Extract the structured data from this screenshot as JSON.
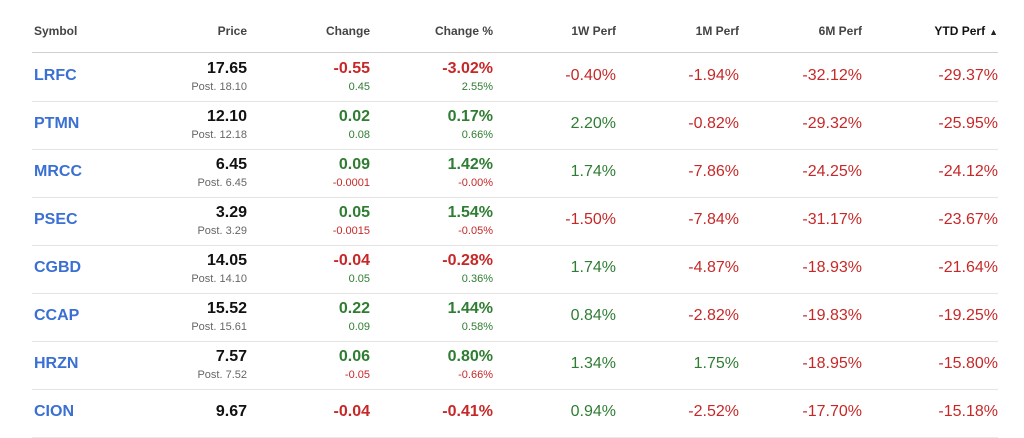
{
  "headers": {
    "symbol": "Symbol",
    "price": "Price",
    "change": "Change",
    "change_pct": "Change %",
    "w1": "1W Perf",
    "m1": "1M Perf",
    "m6": "6M Perf",
    "ytd": "YTD Perf",
    "ytd_sort_icon": "▲"
  },
  "rows": [
    {
      "symbol": "LRFC",
      "price": "17.65",
      "post": "Post. 18.10",
      "change": "-0.55",
      "change_post": "0.45",
      "change_pct": "-3.02%",
      "change_pct_post": "2.55%",
      "w1": "-0.40%",
      "m1": "-1.94%",
      "m6": "-32.12%",
      "ytd": "-29.37%"
    },
    {
      "symbol": "PTMN",
      "price": "12.10",
      "post": "Post. 12.18",
      "change": "0.02",
      "change_post": "0.08",
      "change_pct": "0.17%",
      "change_pct_post": "0.66%",
      "w1": "2.20%",
      "m1": "-0.82%",
      "m6": "-29.32%",
      "ytd": "-25.95%"
    },
    {
      "symbol": "MRCC",
      "price": "6.45",
      "post": "Post. 6.45",
      "change": "0.09",
      "change_post": "-0.0001",
      "change_pct": "1.42%",
      "change_pct_post": "-0.00%",
      "w1": "1.74%",
      "m1": "-7.86%",
      "m6": "-24.25%",
      "ytd": "-24.12%"
    },
    {
      "symbol": "PSEC",
      "price": "3.29",
      "post": "Post. 3.29",
      "change": "0.05",
      "change_post": "-0.0015",
      "change_pct": "1.54%",
      "change_pct_post": "-0.05%",
      "w1": "-1.50%",
      "m1": "-7.84%",
      "m6": "-31.17%",
      "ytd": "-23.67%"
    },
    {
      "symbol": "CGBD",
      "price": "14.05",
      "post": "Post. 14.10",
      "change": "-0.04",
      "change_post": "0.05",
      "change_pct": "-0.28%",
      "change_pct_post": "0.36%",
      "w1": "1.74%",
      "m1": "-4.87%",
      "m6": "-18.93%",
      "ytd": "-21.64%"
    },
    {
      "symbol": "CCAP",
      "price": "15.52",
      "post": "Post. 15.61",
      "change": "0.22",
      "change_post": "0.09",
      "change_pct": "1.44%",
      "change_pct_post": "0.58%",
      "w1": "0.84%",
      "m1": "-2.82%",
      "m6": "-19.83%",
      "ytd": "-19.25%"
    },
    {
      "symbol": "HRZN",
      "price": "7.57",
      "post": "Post. 7.52",
      "change": "0.06",
      "change_post": "-0.05",
      "change_pct": "0.80%",
      "change_pct_post": "-0.66%",
      "w1": "1.34%",
      "m1": "1.75%",
      "m6": "-18.95%",
      "ytd": "-15.80%"
    },
    {
      "symbol": "CION",
      "price": "9.67",
      "post": "",
      "change": "-0.04",
      "change_post": "",
      "change_pct": "-0.41%",
      "change_pct_post": "",
      "w1": "0.94%",
      "m1": "-2.52%",
      "m6": "-17.70%",
      "ytd": "-15.18%"
    }
  ],
  "colors": {
    "positive": "#2e7d32",
    "negative": "#c62828",
    "symbol_link": "#3a6fd3"
  }
}
